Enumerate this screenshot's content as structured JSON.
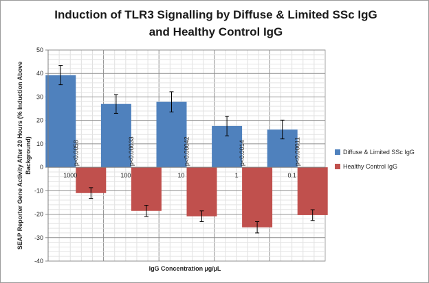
{
  "chart_data": {
    "type": "bar",
    "title_lines": [
      "Induction of TLR3 Signalling by Diffuse & Limited SSc IgG",
      "and Healthy Control IgG"
    ],
    "categories": [
      "1000",
      "100",
      "10",
      "1",
      "0.1"
    ],
    "series": [
      {
        "name": "Diffuse & Limited  SSc IgG",
        "color": "#4f81bd",
        "values": [
          39.3,
          27.0,
          27.9,
          17.6,
          16.1
        ],
        "errors": [
          4.1,
          4.0,
          4.3,
          4.2,
          4.0
        ]
      },
      {
        "name": "Healthy Control  IgG",
        "color": "#c0504d",
        "values": [
          -11.0,
          -18.6,
          -20.9,
          -25.6,
          -20.4
        ],
        "errors": [
          2.3,
          2.4,
          2.3,
          2.4,
          2.3
        ]
      }
    ],
    "p_values": [
      "p<0.0058",
      "p<0.00033",
      "p<0.00042",
      "p<0.0014",
      "p<0.00011"
    ],
    "xlabel": "IgG Concentration  µg/µL",
    "ylabel_lines": [
      "SEAP Reporter Gene Activity  After 20 Hours (% Induction Above",
      "Background)"
    ],
    "ylim": [
      -40,
      50
    ],
    "yticks": [
      -40,
      -30,
      -20,
      -10,
      0,
      10,
      20,
      30,
      40,
      50
    ],
    "grid": true,
    "legend_position": "right"
  }
}
